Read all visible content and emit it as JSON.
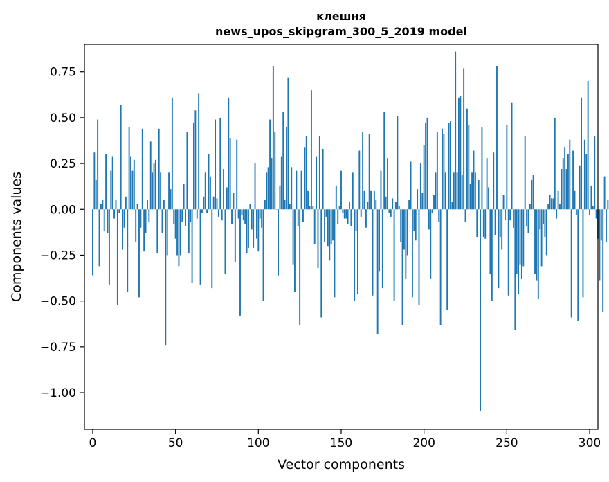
{
  "chart_data": {
    "type": "bar",
    "title": "клешня",
    "subtitle": "news_upos_skipgram_300_5_2019 model",
    "xlabel": "Vector components",
    "ylabel": "Components values",
    "xlim": [
      -5,
      305
    ],
    "ylim": [
      -1.2,
      0.9
    ],
    "xticks": [
      0,
      50,
      100,
      150,
      200,
      250,
      300
    ],
    "xtick_labels": [
      "0",
      "50",
      "100",
      "150",
      "200",
      "250",
      "300"
    ],
    "yticks": [
      0.75,
      0.5,
      0.25,
      0.0,
      -0.25,
      -0.5,
      -0.75,
      -1.0
    ],
    "ytick_labels": [
      "0.75",
      "0.50",
      "0.25",
      "0.00",
      "−0.25",
      "−0.50",
      "−0.75",
      "−1.00"
    ],
    "bar_color": "#1f77b4",
    "values": [
      -0.36,
      0.31,
      0.16,
      0.49,
      -0.31,
      0.03,
      0.05,
      -0.12,
      0.3,
      -0.13,
      -0.41,
      0.21,
      0.29,
      -0.05,
      0.05,
      -0.52,
      -0.02,
      0.57,
      -0.22,
      -0.1,
      0.07,
      -0.45,
      0.45,
      0.29,
      0.21,
      0.27,
      -0.18,
      0.03,
      -0.48,
      -0.1,
      0.44,
      -0.23,
      -0.13,
      0.05,
      -0.07,
      0.37,
      0.2,
      0.25,
      0.27,
      -0.24,
      0.44,
      0.2,
      -0.13,
      0.05,
      -0.74,
      -0.25,
      0.2,
      0.11,
      0.61,
      -0.08,
      -0.16,
      -0.25,
      -0.31,
      -0.25,
      -0.07,
      0.14,
      -0.09,
      0.42,
      -0.24,
      -0.07,
      -0.4,
      0.47,
      0.54,
      -0.05,
      0.63,
      -0.41,
      -0.02,
      0.07,
      0.2,
      -0.02,
      0.3,
      0.18,
      -0.43,
      0.07,
      0.49,
      0.06,
      -0.04,
      0.5,
      -0.06,
      0.22,
      -0.35,
      0.12,
      0.61,
      0.39,
      -0.08,
      0.09,
      -0.29,
      0.38,
      -0.05,
      -0.58,
      -0.03,
      -0.06,
      -0.08,
      -0.24,
      -0.21,
      0.03,
      -0.11,
      -0.21,
      0.25,
      -0.16,
      -0.23,
      -0.05,
      -0.1,
      -0.5,
      0.05,
      0.2,
      0.23,
      0.49,
      0.28,
      0.78,
      0.42,
      0.0,
      -0.36,
      0.13,
      0.29,
      0.53,
      0.05,
      0.45,
      0.72,
      0.03,
      0.23,
      -0.3,
      -0.45,
      0.21,
      -0.09,
      -0.63,
      0.21,
      -0.07,
      0.34,
      0.4,
      0.1,
      0.02,
      0.65,
      0.02,
      -0.19,
      0.29,
      -0.32,
      0.4,
      -0.59,
      0.33,
      -0.18,
      -0.04,
      -0.2,
      -0.28,
      -0.19,
      -0.17,
      -0.48,
      0.13,
      -0.08,
      0.02,
      0.21,
      -0.02,
      -0.05,
      -0.05,
      -0.08,
      0.04,
      -0.09,
      0.2,
      -0.5,
      -0.12,
      -0.46,
      0.32,
      -0.04,
      0.42,
      0.1,
      -0.1,
      0.04,
      0.41,
      0.1,
      -0.47,
      0.1,
      0.05,
      -0.68,
      -0.34,
      0.21,
      -0.43,
      0.53,
      0.07,
      0.28,
      -0.02,
      -0.04,
      0.06,
      -0.5,
      0.04,
      0.51,
      0.02,
      -0.18,
      -0.63,
      -0.22,
      -0.38,
      -0.25,
      0.05,
      0.26,
      -0.48,
      -0.12,
      -0.17,
      0.11,
      -0.52,
      0.25,
      0.09,
      0.35,
      0.47,
      0.5,
      -0.11,
      -0.38,
      -0.02,
      0.08,
      0.2,
      0.42,
      -0.07,
      -0.63,
      0.44,
      0.41,
      0.2,
      -0.55,
      0.47,
      0.48,
      0.04,
      0.2,
      0.86,
      0.2,
      0.61,
      0.62,
      0.19,
      0.77,
      -0.07,
      0.55,
      0.46,
      0.14,
      0.2,
      0.32,
      0.2,
      -0.15,
      0.16,
      -1.1,
      0.45,
      -0.15,
      -0.16,
      0.28,
      0.12,
      -0.35,
      -0.5,
      0.31,
      -0.14,
      0.78,
      -0.43,
      -0.15,
      -0.22,
      0.08,
      -0.06,
      0.46,
      -0.47,
      -0.06,
      0.58,
      -0.1,
      -0.66,
      -0.35,
      -0.46,
      -0.3,
      -0.38,
      -0.31,
      0.4,
      -0.09,
      -0.13,
      0.03,
      0.16,
      0.19,
      -0.35,
      -0.39,
      -0.49,
      -0.11,
      -0.31,
      -0.08,
      -0.15,
      -0.25,
      0.03,
      0.08,
      0.06,
      0.06,
      0.5,
      -0.05,
      0.1,
      0.03,
      0.22,
      0.28,
      0.34,
      0.22,
      0.3,
      0.38,
      -0.59,
      0.32,
      0.1,
      -0.03,
      -0.61,
      0.24,
      0.61,
      -0.48,
      0.38,
      0.3,
      0.7,
      -0.03,
      0.13,
      0.02,
      0.4,
      -0.05,
      -0.16,
      -0.39,
      -0.17,
      -0.56,
      0.18,
      -0.18,
      0.05
    ]
  }
}
